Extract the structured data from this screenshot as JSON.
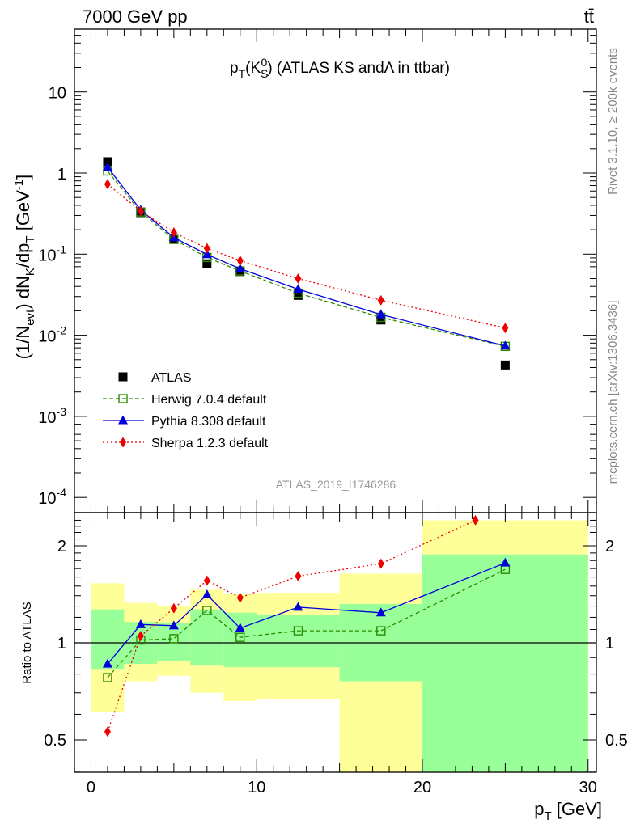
{
  "header": {
    "energy_label": "7000 GeV pp",
    "process_label": "tt̄"
  },
  "side_labels": {
    "rivet": "Rivet 3.1.10, ≥ 200k events",
    "mcplots": "mcplots.cern.ch [arXiv:1306.3436]"
  },
  "analysis_id": "ATLAS_2019_I1746286",
  "chart_data": [
    {
      "panel": "main",
      "type": "scatter",
      "title": "p_T(K^0_S) (ATLAS KS and Λ in ttbar)",
      "ylabel": "(1/N_evt) dN_K/dp_T [GeV^-1]",
      "xlabel": "",
      "y_scale": "log",
      "xlim": [
        -1,
        30.5
      ],
      "ylim": [
        0.0001,
        60
      ],
      "y_tick_labels": [
        "10^-4",
        "10^-3",
        "10^-2",
        "10^-1",
        "1",
        "10"
      ],
      "x_tick_labels": [],
      "legend_position": "lower-left",
      "series": [
        {
          "name": "ATLAS",
          "style": "marker-only",
          "marker": "filled-square",
          "color": "#000000",
          "x": [
            1,
            3,
            5,
            7,
            9,
            12.5,
            17.5,
            25
          ],
          "y": [
            1.38,
            0.325,
            0.152,
            0.076,
            0.061,
            0.031,
            0.0154,
            0.0043
          ]
        },
        {
          "name": "Herwig 7.0.4 default",
          "style": "dashed",
          "marker": "open-square",
          "color": "#2e8b00",
          "x": [
            1,
            3,
            5,
            7,
            9,
            12.5,
            17.5,
            25
          ],
          "y": [
            1.06,
            0.331,
            0.152,
            0.091,
            0.062,
            0.033,
            0.0166,
            0.0073
          ]
        },
        {
          "name": "Pythia 8.308 default",
          "style": "solid",
          "marker": "filled-triangle",
          "color": "#0000dd",
          "x": [
            1,
            3,
            5,
            7,
            9,
            12.5,
            17.5,
            25
          ],
          "y": [
            1.18,
            0.35,
            0.16,
            0.099,
            0.066,
            0.037,
            0.018,
            0.0074
          ]
        },
        {
          "name": "Sherpa 1.2.3 default",
          "style": "dotted",
          "marker": "filled-diamond",
          "color": "#ee0000",
          "x": [
            1,
            3,
            5,
            7,
            9,
            12.5,
            17.5,
            25
          ],
          "y": [
            0.73,
            0.34,
            0.185,
            0.118,
            0.083,
            0.05,
            0.027,
            0.0123
          ]
        }
      ]
    },
    {
      "panel": "ratio",
      "type": "scatter",
      "ylabel": "Ratio to ATLAS",
      "xlabel": "p_T [GeV]",
      "y_scale": "log",
      "xlim": [
        -1,
        30.5
      ],
      "ylim": [
        0.4,
        2.4
      ],
      "y_tick_labels": [
        "0.5",
        "1",
        "2"
      ],
      "x_tick_labels": [
        "0",
        "10",
        "20",
        "30"
      ],
      "reference_line": 1,
      "bands": [
        {
          "x_range": [
            0,
            2
          ],
          "stat": [
            0.83,
            1.27
          ],
          "total": [
            0.61,
            1.53
          ]
        },
        {
          "x_range": [
            2,
            4
          ],
          "stat": [
            0.86,
            1.16
          ],
          "total": [
            0.76,
            1.33
          ]
        },
        {
          "x_range": [
            4,
            6
          ],
          "stat": [
            0.88,
            1.15
          ],
          "total": [
            0.79,
            1.3
          ]
        },
        {
          "x_range": [
            6,
            8
          ],
          "stat": [
            0.85,
            1.27
          ],
          "total": [
            0.7,
            1.46
          ]
        },
        {
          "x_range": [
            8,
            10
          ],
          "stat": [
            0.84,
            1.24
          ],
          "total": [
            0.66,
            1.42
          ]
        },
        {
          "x_range": [
            10,
            15
          ],
          "stat": [
            0.84,
            1.22
          ],
          "total": [
            0.67,
            1.43
          ]
        },
        {
          "x_range": [
            15,
            20
          ],
          "stat": [
            0.76,
            1.32
          ],
          "total": [
            0.39,
            1.64
          ]
        },
        {
          "x_range": [
            20,
            30
          ],
          "stat": [
            0.35,
            1.88
          ],
          "total": [
            0.35,
            2.4
          ]
        }
      ],
      "series": [
        {
          "name": "Herwig 7.0.4 default",
          "style": "dashed",
          "marker": "open-square",
          "color": "#2e8b00",
          "x": [
            1,
            3,
            5,
            7,
            9,
            12.5,
            17.5,
            25
          ],
          "y": [
            0.78,
            1.02,
            1.03,
            1.26,
            1.04,
            1.09,
            1.09,
            1.69
          ]
        },
        {
          "name": "Pythia 8.308 default",
          "style": "solid",
          "marker": "filled-triangle",
          "color": "#0000dd",
          "x": [
            1,
            3,
            5,
            7,
            9,
            12.5,
            17.5,
            25
          ],
          "y": [
            0.86,
            1.14,
            1.13,
            1.41,
            1.11,
            1.29,
            1.24,
            1.77
          ]
        },
        {
          "name": "Sherpa 1.2.3 default",
          "style": "dotted",
          "marker": "filled-diamond",
          "color": "#ee0000",
          "x": [
            1,
            3,
            5,
            7,
            9,
            12.5,
            17.5,
            23.2
          ],
          "y": [
            0.53,
            1.05,
            1.28,
            1.56,
            1.38,
            1.61,
            1.76,
            2.4
          ]
        }
      ]
    }
  ]
}
